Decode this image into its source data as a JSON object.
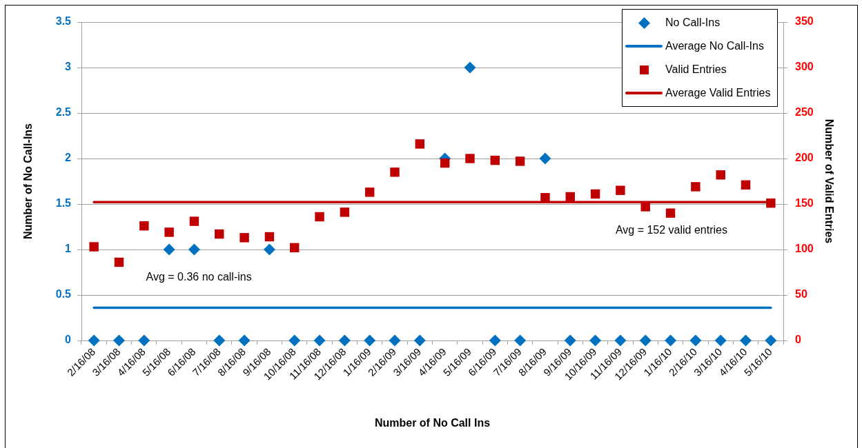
{
  "chart_data": {
    "type": "scatter",
    "xlabel": "Number of No Call Ins",
    "ylabel": "Number of No Call-Ins",
    "y2label": "Number of Valid Entries",
    "categories": [
      "2/16/08",
      "3/16/08",
      "4/16/08",
      "5/16/08",
      "6/16/08",
      "7/16/08",
      "8/16/08",
      "9/16/08",
      "10/16/08",
      "11/16/08",
      "12/16/08",
      "1/16/09",
      "2/16/09",
      "3/16/09",
      "4/16/09",
      "5/16/09",
      "6/16/09",
      "7/16/09",
      "8/16/09",
      "9/16/09",
      "10/16/09",
      "11/16/09",
      "12/16/09",
      "1/16/10",
      "2/16/10",
      "3/16/10",
      "4/16/10",
      "5/16/10"
    ],
    "series": [
      {
        "name": "No Call-Ins",
        "marker": "diamond",
        "color": "#0070c0",
        "values": [
          0,
          0,
          0,
          1,
          1,
          0,
          0,
          1,
          0,
          0,
          0,
          0,
          0,
          0,
          2,
          3,
          0,
          0,
          2,
          0,
          0,
          0,
          0,
          0,
          0,
          0,
          0,
          0
        ]
      },
      {
        "name": "Average No Call-Ins",
        "type": "line",
        "marker": "none",
        "color": "#0070c0",
        "values": [
          0.36,
          0.36,
          0.36,
          0.36,
          0.36,
          0.36,
          0.36,
          0.36,
          0.36,
          0.36,
          0.36,
          0.36,
          0.36,
          0.36,
          0.36,
          0.36,
          0.36,
          0.36,
          0.36,
          0.36,
          0.36,
          0.36,
          0.36,
          0.36,
          0.36,
          0.36,
          0.36,
          0.36
        ]
      },
      {
        "name": "Valid Entries",
        "marker": "square",
        "color": "#c00000",
        "axis": "y2",
        "values": [
          103,
          86,
          126,
          119,
          131,
          117,
          113,
          114,
          102,
          136,
          141,
          163,
          185,
          216,
          195,
          200,
          198,
          197,
          157,
          158,
          161,
          165,
          147,
          140,
          169,
          182,
          171,
          151
        ]
      },
      {
        "name": "Average Valid Entries",
        "type": "line",
        "marker": "none",
        "color": "#c00000",
        "axis": "y2",
        "values": [
          152,
          152,
          152,
          152,
          152,
          152,
          152,
          152,
          152,
          152,
          152,
          152,
          152,
          152,
          152,
          152,
          152,
          152,
          152,
          152,
          152,
          152,
          152,
          152,
          152,
          152,
          152,
          152
        ]
      }
    ],
    "ylim": [
      0,
      3.5
    ],
    "yticks": [
      0,
      0.5,
      1,
      1.5,
      2,
      2.5,
      3,
      3.5
    ],
    "y2lim": [
      0,
      350
    ],
    "y2ticks": [
      0,
      50,
      100,
      150,
      200,
      250,
      300,
      350
    ],
    "grid": "y",
    "legend": "top right",
    "annotations": [
      "Avg = 0.36 no call-ins",
      "Avg = 152 valid entries"
    ]
  }
}
